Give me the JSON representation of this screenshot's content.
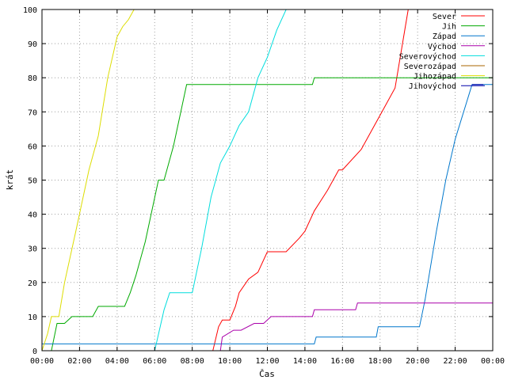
{
  "chart_data": {
    "type": "line",
    "xlabel": "Čas",
    "ylabel": "krát",
    "xlim": [
      0,
      24
    ],
    "ylim": [
      0,
      100
    ],
    "xticks": [
      "00:00",
      "02:00",
      "04:00",
      "06:00",
      "08:00",
      "10:00",
      "12:00",
      "14:00",
      "16:00",
      "18:00",
      "20:00",
      "22:00",
      "00:00"
    ],
    "yticks": [
      0,
      10,
      20,
      30,
      40,
      50,
      60,
      70,
      80,
      90,
      100
    ],
    "grid": true,
    "legend_position": "top-right",
    "series": [
      {
        "name": "Sever",
        "color": "#ff0000",
        "x": [
          9.1,
          9.4,
          9.6,
          10.0,
          10.3,
          10.5,
          11.0,
          11.5,
          12.0,
          13.0,
          13.7,
          14.0,
          14.5,
          15.2,
          15.8,
          16.0,
          17.0,
          17.6,
          18.2,
          18.8,
          19.5
        ],
        "y": [
          0,
          7,
          9,
          9,
          13,
          17,
          21,
          23,
          29,
          29,
          33,
          35,
          41,
          47,
          53,
          53,
          59,
          65,
          71,
          77,
          100
        ]
      },
      {
        "name": "Jih",
        "color": "#00aa00",
        "x": [
          0,
          0.5,
          0.8,
          1.2,
          1.6,
          2.7,
          3.0,
          4.4,
          4.7,
          5.0,
          5.5,
          6.2,
          6.5,
          7.0,
          7.7,
          14.4,
          14.5,
          24.0
        ],
        "y": [
          0,
          0,
          8,
          8,
          10,
          10,
          13,
          13,
          17,
          22,
          32,
          50,
          50,
          60,
          78,
          78,
          80,
          80
        ]
      },
      {
        "name": "Západ",
        "color": "#0077cc",
        "x": [
          0,
          14.5,
          14.6,
          17.8,
          17.9,
          20.1,
          20.4,
          21.0,
          21.5,
          22.0,
          22.9,
          23.5,
          24.0
        ],
        "y": [
          2,
          2,
          4,
          4,
          7,
          7,
          15,
          35,
          50,
          62,
          78,
          78,
          78
        ]
      },
      {
        "name": "Východ",
        "color": "#aa00aa",
        "x": [
          9.5,
          9.6,
          10.2,
          10.6,
          11.3,
          11.8,
          12.2,
          14.4,
          14.5,
          16.7,
          16.8,
          24.0
        ],
        "y": [
          0,
          4,
          6,
          6,
          8,
          8,
          10,
          10,
          12,
          12,
          14,
          14
        ]
      },
      {
        "name": "Severovýchod",
        "color": "#00dddd",
        "x": [
          6.0,
          6.5,
          6.8,
          8.0,
          8.5,
          9.0,
          9.5,
          10.0,
          10.5,
          11.0,
          11.5,
          12.0,
          12.5,
          13.0,
          13.1
        ],
        "y": [
          0,
          12,
          17,
          17,
          30,
          45,
          55,
          60,
          66,
          70,
          80,
          86,
          94,
          100,
          100
        ]
      },
      {
        "name": "Severozápad",
        "color": "#aa6600",
        "x": [],
        "y": []
      },
      {
        "name": "Jihozápad",
        "color": "#dddd00",
        "x": [
          0,
          0.3,
          0.5,
          0.9,
          1.2,
          1.8,
          2.5,
          3.0,
          3.5,
          4.0,
          4.3,
          4.6,
          4.9,
          24.0
        ],
        "y": [
          0,
          5,
          10,
          10,
          20,
          35,
          53,
          63,
          80,
          92,
          95,
          97,
          100,
          100
        ]
      },
      {
        "name": "Jihovýchod",
        "color": "#0000aa",
        "x": [
          22.9,
          23.5
        ],
        "y": [
          78,
          78
        ]
      }
    ]
  }
}
